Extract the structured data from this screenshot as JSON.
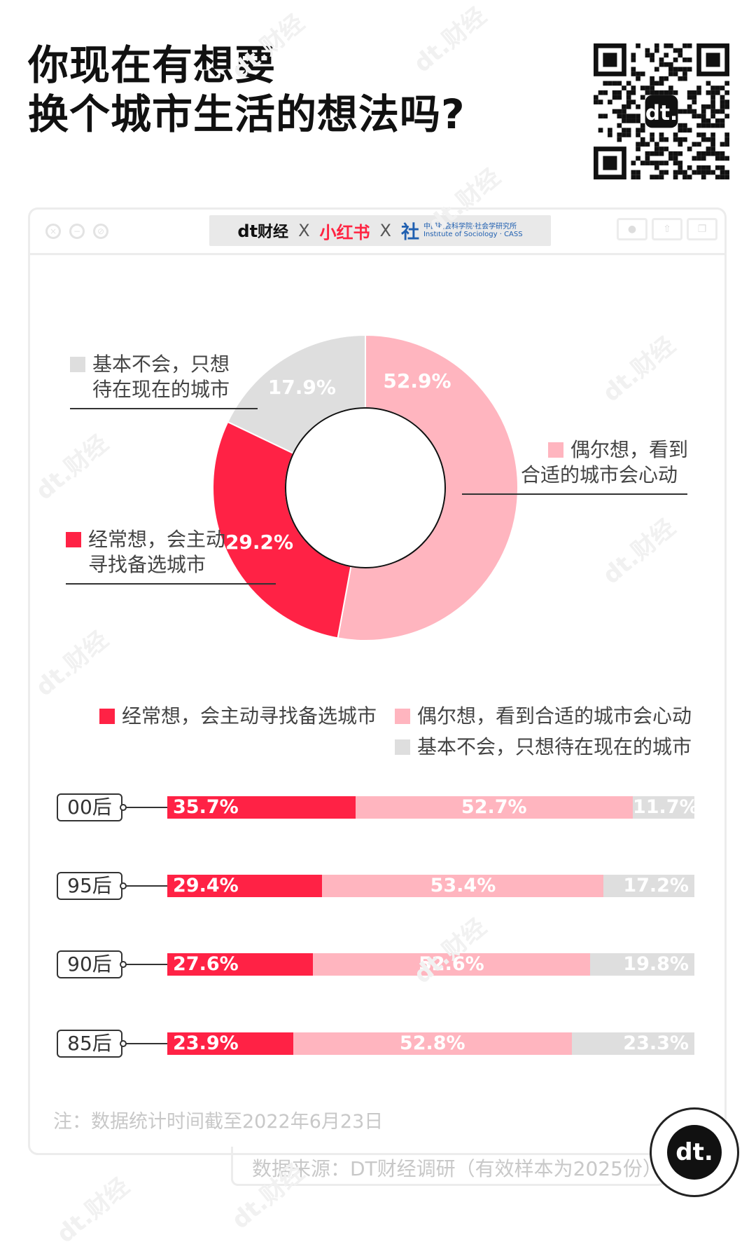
{
  "title_lines": [
    "你现在有想要",
    "换个城市生活的想法吗?"
  ],
  "header": {
    "logo_dt": "dt",
    "logo_dt_text": "财经",
    "logo_x1": "X",
    "logo_xhs": "小红书",
    "logo_x2": "X",
    "logo_cass_cn": "中国社会科学院·社会学研究所",
    "logo_cass_en": "Institute of Sociology · CASS"
  },
  "colors": {
    "often": "#ff2245",
    "sometimes": "#ffb5bf",
    "no": "#dedede"
  },
  "chart_data": [
    {
      "type": "pie",
      "variant": "donut",
      "slices": [
        {
          "label": "偶尔想，看到合适的城市会心动",
          "value": 52.9,
          "value_label": "52.9%",
          "color": "#ffb5bf"
        },
        {
          "label": "经常想，会主动寻找备选城市",
          "value": 29.2,
          "value_label": "29.2%",
          "color": "#ff2245"
        },
        {
          "label": "基本不会，只想待在现在的城市",
          "value": 17.9,
          "value_label": "17.9%",
          "color": "#dedede"
        }
      ],
      "callouts": {
        "sometimes": [
          "偶尔想，看到",
          "合适的城市会心动"
        ],
        "often": [
          "经常想，会主动",
          "寻找备选城市"
        ],
        "no": [
          "基本不会，只想",
          "待在现在的城市"
        ]
      }
    },
    {
      "type": "bar",
      "orientation": "horizontal",
      "stacked": "percent",
      "categories": [
        "00后",
        "95后",
        "90后",
        "85后"
      ],
      "series": [
        {
          "name": "经常想，会主动寻找备选城市",
          "values": [
            35.7,
            29.4,
            27.6,
            23.9
          ],
          "labels": [
            "35.7%",
            "29.4%",
            "27.6%",
            "23.9%"
          ],
          "color": "#ff2245"
        },
        {
          "name": "偶尔想，看到合适的城市会心动",
          "values": [
            52.7,
            53.4,
            52.6,
            52.8
          ],
          "labels": [
            "52.7%",
            "53.4%",
            "52.6%",
            "52.8%"
          ],
          "color": "#ffb5bf"
        },
        {
          "name": "基本不会，只想待在现在的城市",
          "values": [
            11.7,
            17.2,
            19.8,
            23.3
          ],
          "labels": [
            "11.7%",
            "17.2%",
            "19.8%",
            "23.3%"
          ],
          "color": "#dedede"
        }
      ]
    }
  ],
  "note": "注：数据统计时间截至2022年6月23日",
  "source": "数据来源：DT财经调研（有效样本为2025份）",
  "badge": "dt.",
  "watermark": "dt.财经"
}
